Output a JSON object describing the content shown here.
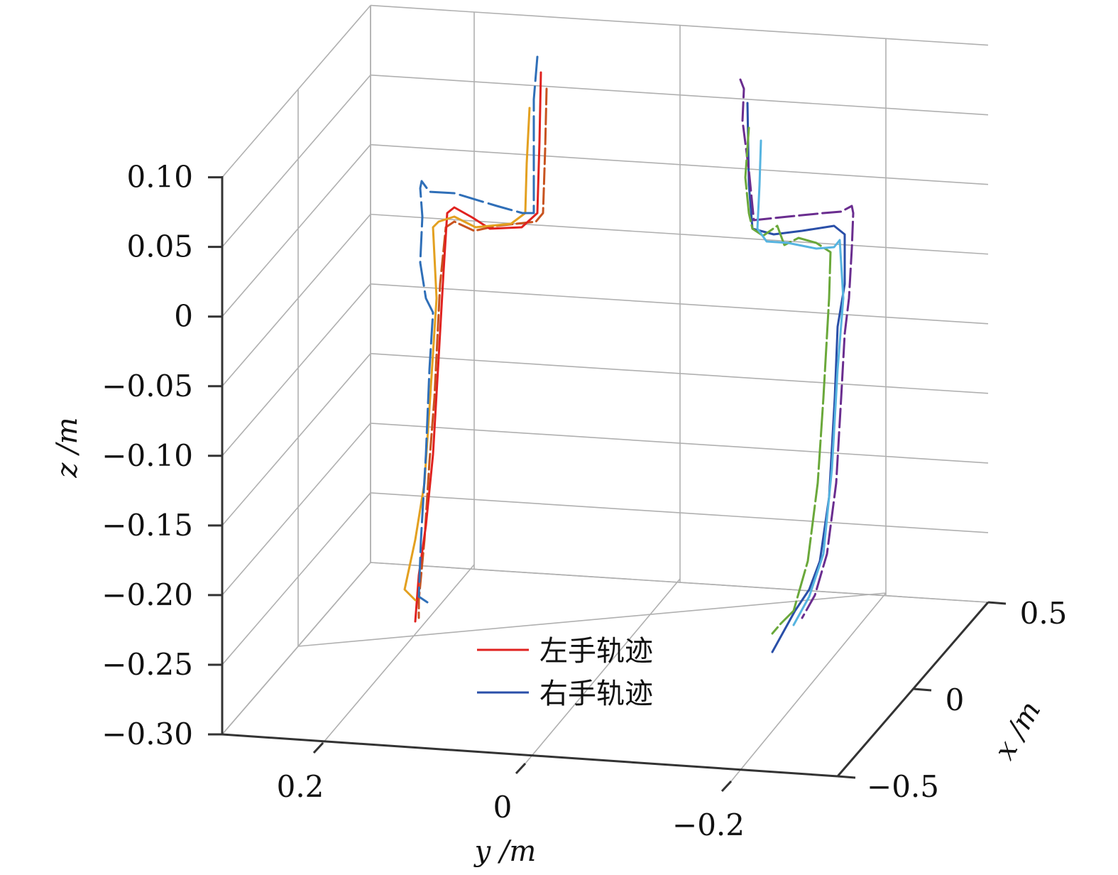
{
  "chart_data": {
    "type": "line3d",
    "xlabel": "x /m",
    "ylabel": "y /m",
    "zlabel": "z /m",
    "xlim": [
      -0.5,
      0.5
    ],
    "ylim": [
      -0.3,
      0.3
    ],
    "zlim": [
      -0.3,
      0.1
    ],
    "x_ticks": [
      "0.5",
      "0",
      "−0.5"
    ],
    "y_ticks": [
      "0.2",
      "0",
      "−0.2"
    ],
    "z_ticks": [
      "0.10",
      "0.05",
      "0",
      "−0.05",
      "−0.10",
      "−0.15",
      "−0.20",
      "−0.25",
      "−0.30"
    ],
    "grid": true,
    "legend_position": "bottom-center",
    "legend": [
      {
        "label": "左手轨迹",
        "color": "#e0221f"
      },
      {
        "label": "右手轨迹",
        "color": "#2a4fa8"
      }
    ],
    "trajectory_colors": {
      "left_hand": [
        "#e0221f",
        "#c8531f",
        "#e3a020",
        "#2f6fb8"
      ],
      "right_hand": [
        "#2a4fa8",
        "#6a2d8f",
        "#6aa83a",
        "#56b4e0"
      ]
    }
  }
}
